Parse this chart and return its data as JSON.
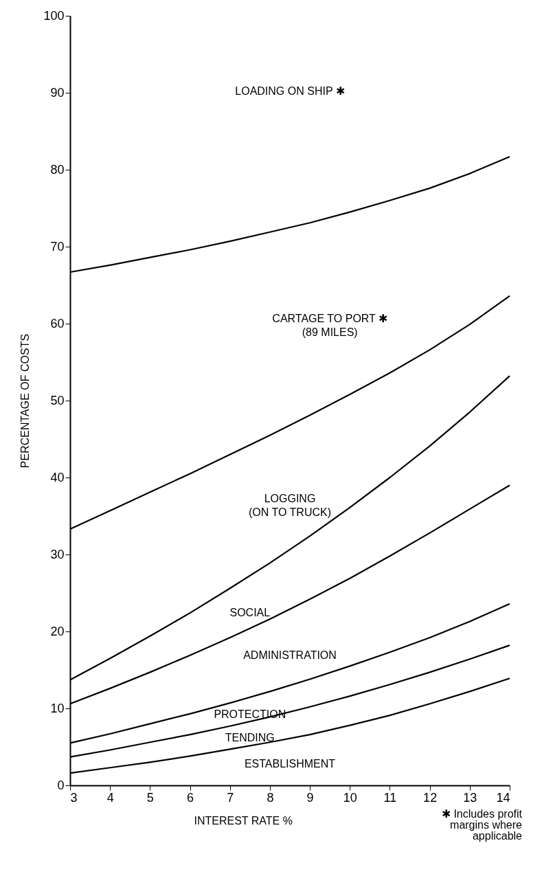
{
  "chart_data": {
    "type": "line",
    "xlabel": "INTEREST   RATE   %",
    "ylabel": "PERCENTAGE   OF   COSTS",
    "x": [
      3,
      4,
      5,
      6,
      7,
      8,
      9,
      10,
      11,
      12,
      13,
      14
    ],
    "series": [
      {
        "color": "#000000",
        "values": [
          66.7,
          67.6,
          68.6,
          69.6,
          70.7,
          71.9,
          73.1,
          74.5,
          76.0,
          77.6,
          79.5,
          81.7
        ]
      },
      {
        "color": "#000000",
        "values": [
          33.3,
          35.7,
          38.1,
          40.5,
          43.0,
          45.5,
          48.1,
          50.8,
          53.6,
          56.6,
          59.9,
          63.6
        ]
      },
      {
        "color": "#000000",
        "values": [
          13.7,
          16.5,
          19.4,
          22.4,
          25.6,
          28.9,
          32.4,
          36.1,
          40.0,
          44.1,
          48.5,
          53.2
        ]
      },
      {
        "color": "#000000",
        "values": [
          10.6,
          12.6,
          14.7,
          16.9,
          19.2,
          21.6,
          24.2,
          26.9,
          29.8,
          32.8,
          35.9,
          39.0
        ]
      },
      {
        "color": "#000000",
        "values": [
          5.5,
          6.7,
          8.0,
          9.3,
          10.7,
          12.2,
          13.8,
          15.5,
          17.3,
          19.2,
          21.3,
          23.6
        ]
      },
      {
        "color": "#000000",
        "values": [
          3.7,
          4.6,
          5.6,
          6.6,
          7.7,
          8.9,
          10.2,
          11.6,
          13.1,
          14.7,
          16.4,
          18.2
        ]
      },
      {
        "color": "#000000",
        "values": [
          1.6,
          2.3,
          3.0,
          3.8,
          4.7,
          5.6,
          6.6,
          7.8,
          9.1,
          10.6,
          12.2,
          13.9
        ]
      }
    ],
    "xlim": [
      3,
      14
    ],
    "xticks": [
      3,
      4,
      5,
      6,
      7,
      8,
      9,
      10,
      11,
      12,
      13,
      14
    ],
    "ylim": [
      0,
      100
    ],
    "yticks": [
      0,
      10,
      20,
      30,
      40,
      50,
      60,
      70,
      80,
      90,
      100
    ],
    "grid": false,
    "marker": "none",
    "line_style": "solid",
    "annotations": [
      "LOADING   ON   SHIP  ✱",
      "CARTAGE   TO   PORT  ✱\n(89  MILES)",
      "LOGGING\n(ON   TO   TRUCK)",
      "SOCIAL",
      "ADMINISTRATION",
      "PROTECTION",
      "TENDING",
      "ESTABLISHMENT",
      "✱ Includes   profit\nmargins   where\napplicable"
    ]
  }
}
